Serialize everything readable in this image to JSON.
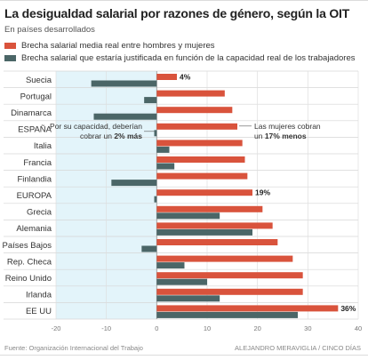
{
  "title": "La desigualdad salarial por razones de género, según la OIT",
  "subtitle": "En países desarrollados",
  "footer": {
    "source": "Fuente: Organización Internacional del Trabajo",
    "credit": "ALEJANDRO MERAVIGLIA / CINCO DÍAS"
  },
  "colors": {
    "series1": "#d9533c",
    "series2": "#4b6667",
    "shade": "#e3f4fa"
  },
  "annotations": {
    "left_lines": [
      "Por su capacidad, deberían",
      "cobrar un",
      "2% más"
    ],
    "right_lines": [
      "Las mujeres cobran",
      "un",
      "17% menos"
    ]
  },
  "chart_data": {
    "type": "bar",
    "orientation": "horizontal",
    "categories": [
      "Suecia",
      "Portugal",
      "Dinamarca",
      "ESPAÑA",
      "Italia",
      "Francia",
      "Finlandia",
      "EUROPA",
      "Grecia",
      "Alemania",
      "Países Bajos",
      "Rep. Checa",
      "Reino Unido",
      "Irlanda",
      "EE UU"
    ],
    "series": [
      {
        "name": "Brecha salarial media real entre hombres y mujeres",
        "values": [
          4,
          13.5,
          15,
          16,
          17,
          17.5,
          18,
          19,
          21,
          23,
          24,
          27,
          29,
          29,
          36
        ]
      },
      {
        "name": "Brecha salarial que estaría justificada en función de la capacidad real de los trabajadores",
        "values": [
          -13,
          -2.5,
          -12.5,
          -0.5,
          2.5,
          3.5,
          -9,
          -0.5,
          12.5,
          19,
          -3,
          5.5,
          10,
          12.5,
          28
        ]
      }
    ],
    "data_labels": [
      {
        "index": 0,
        "text": "4%"
      },
      {
        "index": 7,
        "text": "19%"
      },
      {
        "index": 14,
        "text": "36%"
      }
    ],
    "x_ticks": [
      "-20",
      "-10",
      "0",
      "10",
      "20",
      "30",
      "40"
    ],
    "xlim": [
      -20,
      40
    ],
    "shaded_range": [
      -20,
      0
    ],
    "grid": true
  }
}
